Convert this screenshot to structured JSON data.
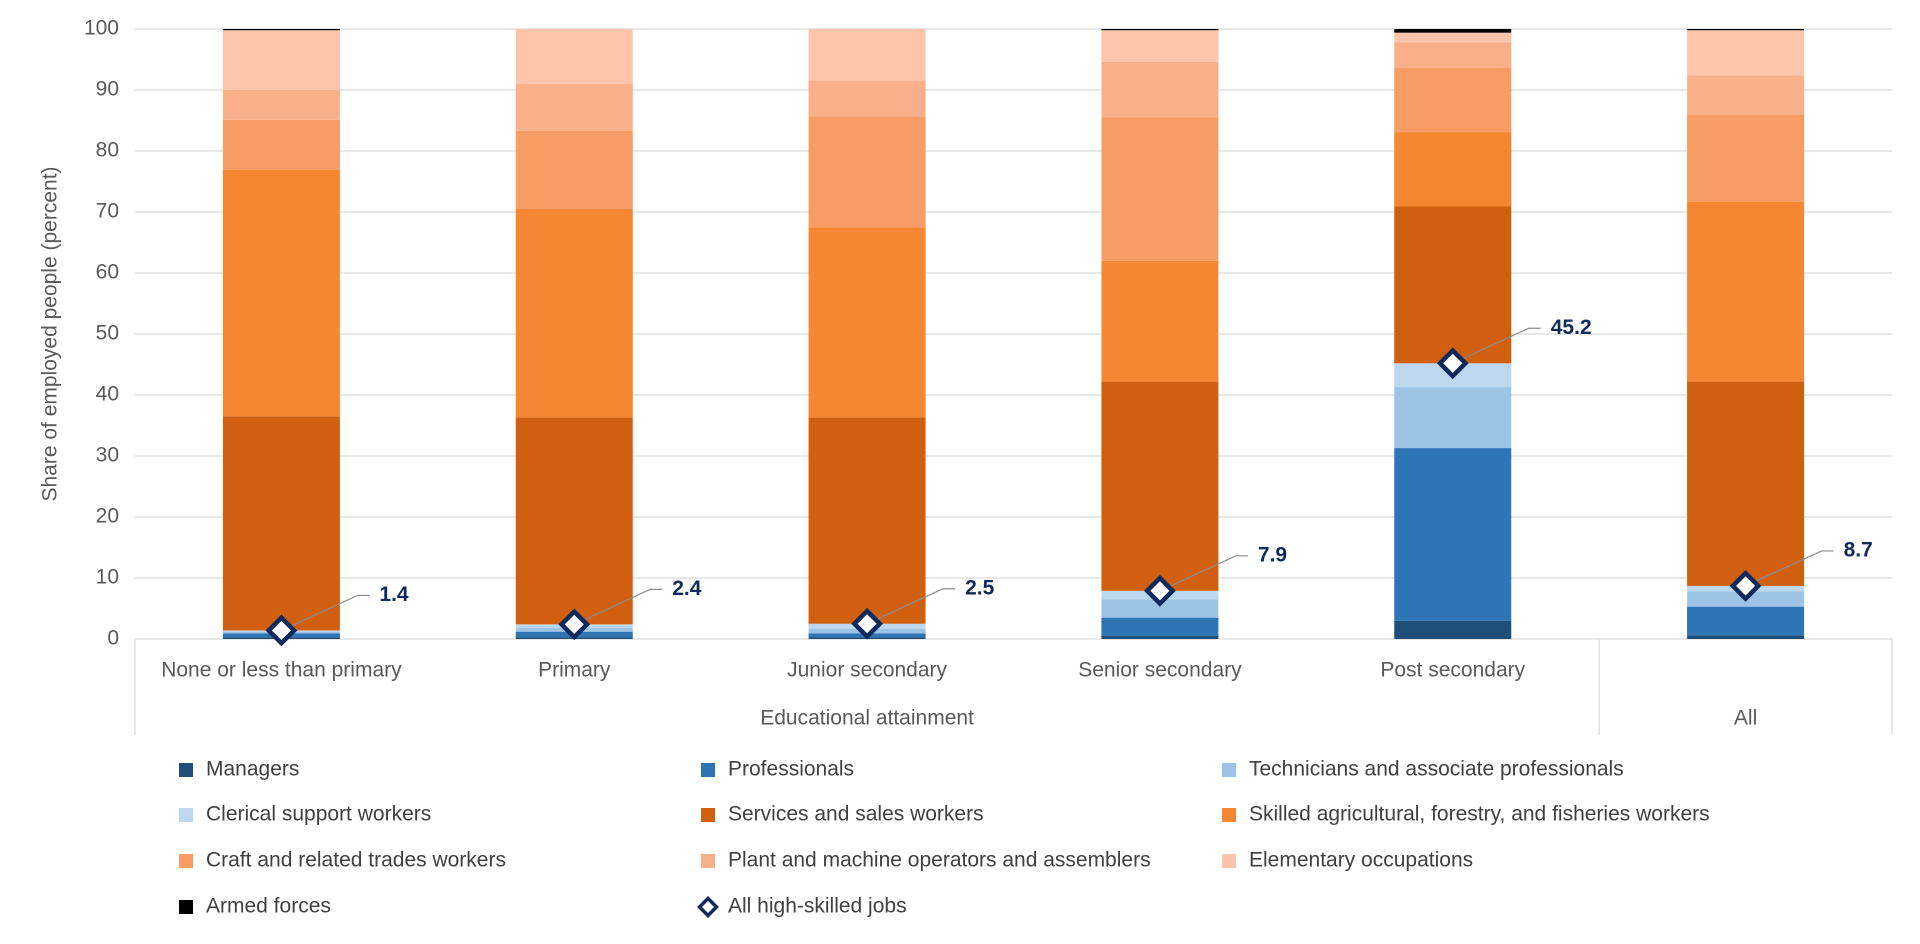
{
  "chart_data": {
    "type": "stacked-bar",
    "y_axis_label": "Share of employed people (percent)",
    "categories": [
      "None or less than primary",
      "Primary",
      "Junior secondary",
      "Senior secondary",
      "Post secondary",
      null
    ],
    "category_groups": [
      "Educational attainment",
      "Educational attainment",
      "Educational attainment",
      "Educational attainment",
      "Educational attainment",
      "All"
    ],
    "ylim": [
      0,
      100
    ],
    "yticks": [
      0,
      10,
      20,
      30,
      40,
      50,
      60,
      70,
      80,
      90,
      100
    ],
    "grid": true,
    "legend": "bottom",
    "series": [
      {
        "name": "Managers",
        "color": "#1f4e79",
        "values": [
          0.3,
          0.3,
          0.3,
          0.5,
          3.0,
          0.6
        ]
      },
      {
        "name": "Professionals",
        "color": "#2e75b6",
        "values": [
          0.6,
          0.9,
          0.6,
          3.0,
          28.3,
          4.7
        ]
      },
      {
        "name": "Technicians and associate professionals",
        "color": "#9dc3e6",
        "values": [
          0.3,
          0.6,
          0.8,
          3.0,
          10.0,
          2.5
        ]
      },
      {
        "name": "Clerical support workers",
        "color": "#bdd7ee",
        "values": [
          0.2,
          0.6,
          0.8,
          1.4,
          3.9,
          0.9
        ]
      },
      {
        "name": "Services and sales workers",
        "color": "#d06010",
        "values": [
          35.1,
          33.9,
          33.8,
          34.3,
          25.7,
          33.5
        ]
      },
      {
        "name": "Skilled agricultural, forestry, and fisheries workers",
        "color": "#f58632",
        "values": [
          40.4,
          34.2,
          31.2,
          19.8,
          12.2,
          29.5
        ]
      },
      {
        "name": "Craft and related trades workers",
        "color": "#f89c66",
        "values": [
          8.2,
          12.8,
          18.2,
          23.5,
          10.5,
          14.2
        ]
      },
      {
        "name": "Plant and machine operators and assemblers",
        "color": "#f9b08a",
        "values": [
          4.9,
          7.7,
          5.9,
          9.1,
          4.2,
          6.5
        ]
      },
      {
        "name": "Elementary occupations",
        "color": "#fbc4ab",
        "values": [
          9.8,
          9.0,
          8.4,
          5.2,
          1.6,
          7.4
        ]
      },
      {
        "name": "Armed forces",
        "color": "#000000",
        "values": [
          0.2,
          0,
          0,
          0.2,
          0.6,
          0.2
        ]
      }
    ],
    "overlay": {
      "name": "All high-skilled jobs",
      "color": "#0f2a5c",
      "marker": "diamond",
      "values": [
        1.4,
        2.4,
        2.5,
        7.9,
        45.2,
        8.7
      ]
    }
  }
}
